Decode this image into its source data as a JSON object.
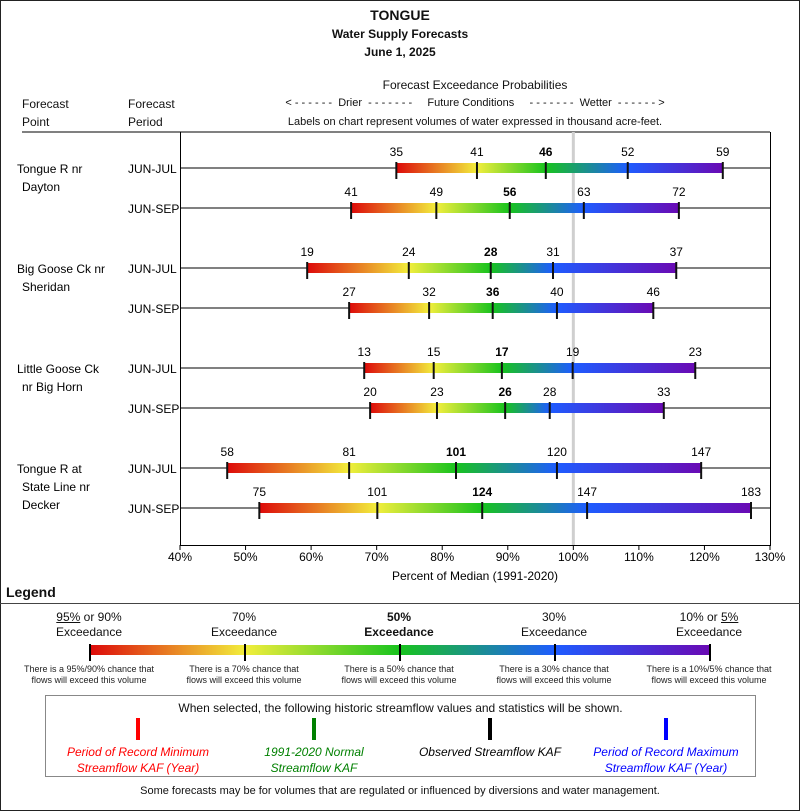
{
  "header": {
    "basin": "TONGUE",
    "subtitle": "Water Supply Forecasts",
    "date": "June 1, 2025",
    "col_point_line1": "Forecast",
    "col_point_line2": "Point",
    "col_period_line1": "Forecast",
    "col_period_line2": "Period",
    "probabilities_title": "Forecast Exceedance Probabilities",
    "direction_line": "< - - - - - -  Drier  - - - - - - -     Future Conditions     - - - - - - -  Wetter  - - - - - - >",
    "units_note": "Labels on chart represent volumes of water expressed in thousand acre-feet."
  },
  "chart_data": {
    "type": "bar",
    "title": "Forecast Exceedance Probabilities",
    "xlabel": "Percent of Median (1991-2020)",
    "ylabel": "",
    "xlim": [
      40,
      130
    ],
    "x_ticks": [
      40,
      50,
      60,
      70,
      80,
      90,
      100,
      110,
      120,
      130
    ],
    "x_tick_labels": [
      "40%",
      "50%",
      "60%",
      "70%",
      "80%",
      "90%",
      "100%",
      "110%",
      "120%",
      "130%"
    ],
    "reference_line": 100,
    "exceedance_levels": [
      "90%",
      "70%",
      "50%",
      "30%",
      "10%"
    ],
    "gradient_colors": [
      "#dd0a0a",
      "#f2ee3c",
      "#18c31e",
      "#1e5cff",
      "#6a0ab4"
    ],
    "sites": [
      {
        "point": [
          "Tongue R nr",
          "Dayton"
        ],
        "periods": [
          {
            "period": "JUN-JUL",
            "volumes_kaf": [
              35,
              41,
              46,
              52,
              59
            ],
            "pct_median": [
              73.0,
              85.3,
              95.8,
              108.3,
              122.8
            ]
          },
          {
            "period": "JUN-SEP",
            "volumes_kaf": [
              41,
              49,
              56,
              63,
              72
            ],
            "pct_median": [
              66.1,
              79.1,
              90.3,
              101.6,
              116.1
            ]
          }
        ]
      },
      {
        "point": [
          "Big Goose Ck nr",
          "Sheridan"
        ],
        "periods": [
          {
            "period": "JUN-JUL",
            "volumes_kaf": [
              19,
              24,
              28,
              31,
              37
            ],
            "pct_median": [
              59.4,
              74.9,
              87.4,
              96.9,
              115.7
            ]
          },
          {
            "period": "JUN-SEP",
            "volumes_kaf": [
              27,
              32,
              36,
              40,
              46
            ],
            "pct_median": [
              65.8,
              78.0,
              87.7,
              97.5,
              112.2
            ]
          }
        ]
      },
      {
        "point": [
          "Little Goose Ck",
          "nr Big Horn"
        ],
        "periods": [
          {
            "period": "JUN-JUL",
            "volumes_kaf": [
              13,
              15,
              17,
              19,
              23
            ],
            "pct_median": [
              68.1,
              78.7,
              89.1,
              99.9,
              118.6
            ]
          },
          {
            "period": "JUN-SEP",
            "volumes_kaf": [
              20,
              23,
              26,
              28,
              33
            ],
            "pct_median": [
              69.0,
              79.2,
              89.6,
              96.4,
              113.8
            ]
          }
        ]
      },
      {
        "point": [
          "Tongue R at",
          "State Line nr",
          "Decker"
        ],
        "periods": [
          {
            "period": "JUN-JUL",
            "volumes_kaf": [
              58,
              81,
              101,
              120,
              147
            ],
            "pct_median": [
              47.2,
              65.8,
              82.1,
              97.5,
              119.5
            ]
          },
          {
            "period": "JUN-SEP",
            "volumes_kaf": [
              75,
              101,
              124,
              147,
              183
            ],
            "pct_median": [
              52.1,
              70.1,
              86.1,
              102.1,
              127.1
            ]
          }
        ]
      }
    ]
  },
  "legend": {
    "title": "Legend",
    "levels": [
      {
        "head_u": "95%",
        "head_rest": " or 90%",
        "head2": "Exceedance",
        "note1": "There is a 95%/90% chance that",
        "note2": "flows will exceed this volume",
        "bold": false
      },
      {
        "head_u": "",
        "head_rest": "70%",
        "head2": "Exceedance",
        "note1": "There is a 70% chance that",
        "note2": "flows will exceed this volume",
        "bold": false
      },
      {
        "head_u": "",
        "head_rest": "50%",
        "head2": "Exceedance",
        "note1": "There is a 50% chance that",
        "note2": "flows will exceed this volume",
        "bold": true
      },
      {
        "head_u": "",
        "head_rest": "30%",
        "head2": "Exceedance",
        "note1": "There is a 30% chance that",
        "note2": "flows will exceed this volume",
        "bold": false
      },
      {
        "head_pre": "10% or ",
        "head_u2": "5%",
        "head2": "Exceedance",
        "note1": "There is a 10%/5% chance that",
        "note2": "flows will exceed this volume",
        "bold": false
      }
    ],
    "historic_caption": "When selected, the following historic streamflow values and statistics will be shown.",
    "historic_items": [
      {
        "line1": "Period of Record Minimum",
        "line2": "Streamflow KAF (Year)",
        "color": "#ff0000"
      },
      {
        "line1": "1991-2020 Normal",
        "line2": "Streamflow KAF",
        "color": "#008000"
      },
      {
        "line1": "Observed Streamflow KAF",
        "line2": "",
        "color": "#000000"
      },
      {
        "line1": "Period of Record Maximum",
        "line2": "Streamflow KAF (Year)",
        "color": "#0000ff"
      }
    ]
  },
  "footnote": "Some forecasts may be for volumes that are regulated or influenced by diversions and water management."
}
